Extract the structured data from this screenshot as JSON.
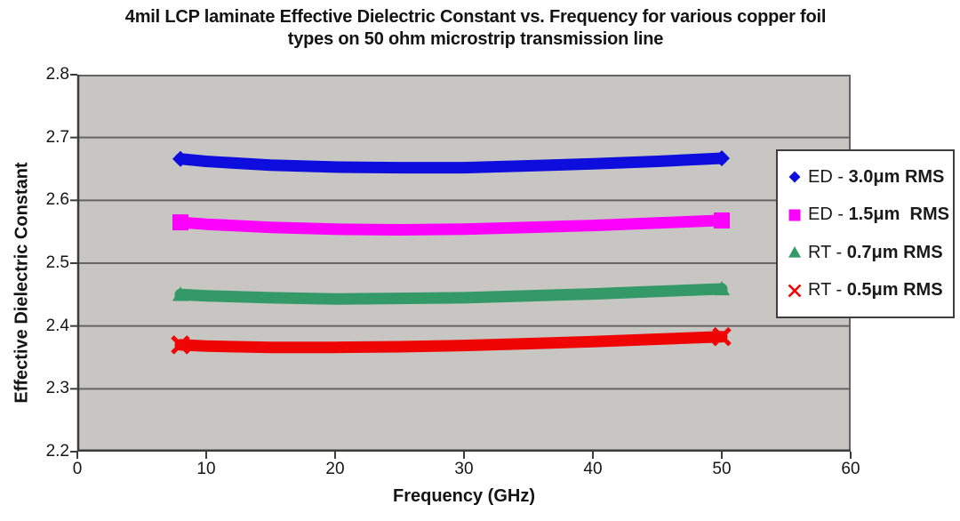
{
  "chart_data": {
    "type": "line",
    "title": "4mil LCP laminate Effective Dielectric Constant vs. Frequency for various copper foil types on 50 ohm microstrip transmission line",
    "title_lines": [
      "4mil LCP laminate Effective Dielectric Constant vs. Frequency for various copper foil",
      "types on 50 ohm microstrip transmission line"
    ],
    "xlabel": "Frequency (GHz)",
    "ylabel": "Effective Dielectric Constant",
    "xlim": [
      0,
      60
    ],
    "ylim": [
      2.2,
      2.8
    ],
    "x_ticks": [
      0,
      10,
      20,
      30,
      40,
      50,
      60
    ],
    "y_ticks": [
      2.2,
      2.3,
      2.4,
      2.5,
      2.6,
      2.7,
      2.8
    ],
    "grid": true,
    "legend_position": "right-overlay",
    "x": [
      8,
      10,
      15,
      20,
      25,
      30,
      35,
      40,
      45,
      50
    ],
    "series": [
      {
        "name": "ED - 3.0μm RMS",
        "marker": "diamond",
        "color": "#0d0ddd",
        "values": [
          2.666,
          2.662,
          2.656,
          2.653,
          2.652,
          2.652,
          2.655,
          2.658,
          2.662,
          2.667
        ]
      },
      {
        "name": "ED - 1.5μm RMS",
        "marker": "square",
        "color": "#fb00fb",
        "values": [
          2.565,
          2.562,
          2.557,
          2.554,
          2.553,
          2.554,
          2.557,
          2.56,
          2.564,
          2.568
        ]
      },
      {
        "name": "RT - 0.7μm RMS",
        "marker": "triangle",
        "color": "#339966",
        "values": [
          2.45,
          2.448,
          2.445,
          2.443,
          2.444,
          2.445,
          2.448,
          2.451,
          2.455,
          2.459
        ]
      },
      {
        "name": "RT - 0.5μm RMS",
        "marker": "x",
        "color": "#f00505",
        "values": [
          2.37,
          2.368,
          2.366,
          2.366,
          2.367,
          2.369,
          2.372,
          2.375,
          2.379,
          2.383
        ]
      }
    ],
    "legend": [
      {
        "prefix": "ED - ",
        "bold": "3.0μm RMS"
      },
      {
        "prefix": "ED - ",
        "bold": "1.5μm  RMS"
      },
      {
        "prefix": "RT - ",
        "bold": "0.7μm RMS"
      },
      {
        "prefix": "RT - ",
        "bold": "0.5μm RMS"
      }
    ],
    "style": {
      "plot_bg": "#c8c6c2",
      "gridline": "#646464",
      "axis": "#3c3c3c",
      "legend_border": "#3d3d3d",
      "line_width": 13
    }
  }
}
